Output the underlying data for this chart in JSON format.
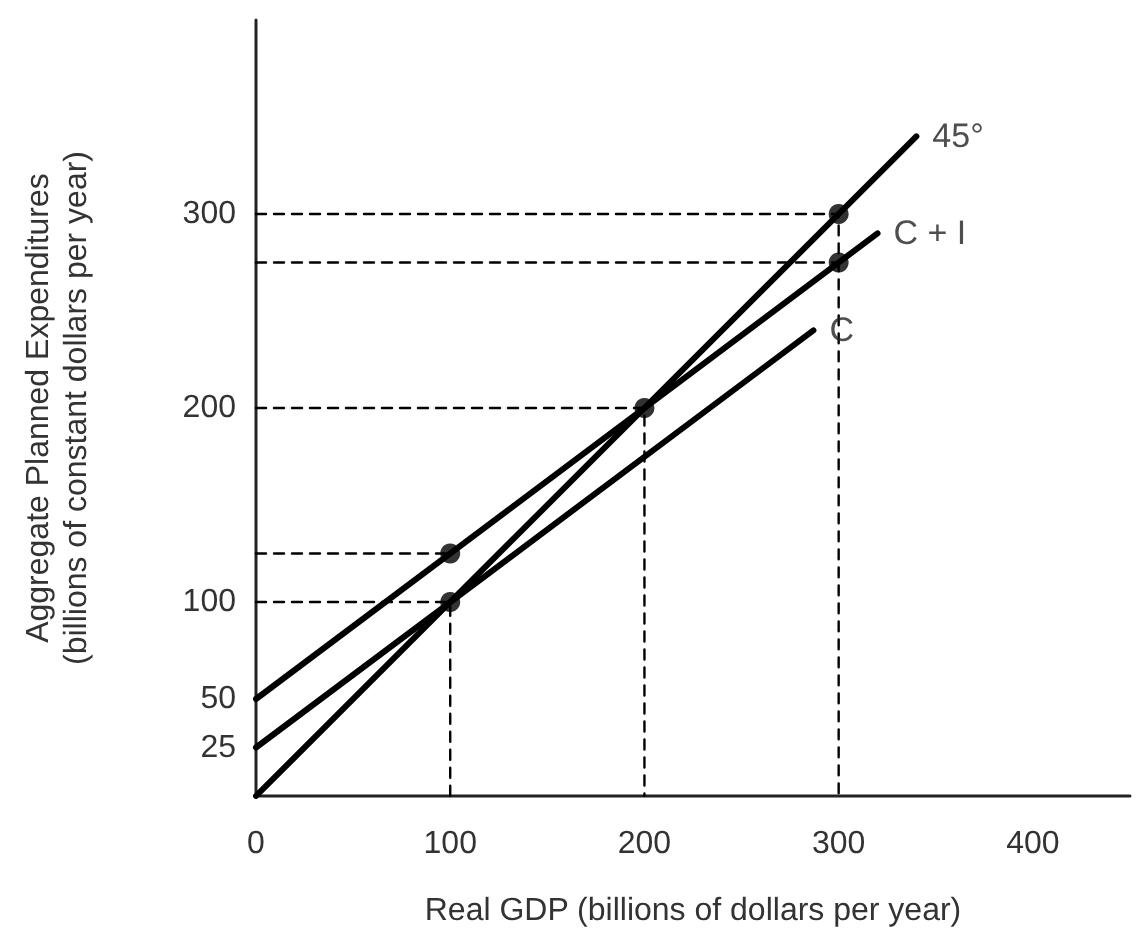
{
  "chart_data": {
    "type": "line",
    "xlabel": "Real GDP (billions of dollars per year)",
    "ylabel": "Aggregate Planned Expenditures\n(billions of constant dollars per year)",
    "xlim": [
      0,
      450
    ],
    "ylim": [
      0,
      400
    ],
    "xticks": [
      0,
      100,
      200,
      300,
      400
    ],
    "yticks": [
      25,
      50,
      100,
      200,
      300
    ],
    "series": [
      {
        "type": "line",
        "color": "#000000",
        "x": [
          0,
          100
        ],
        "values": [
          125,
          125
        ],
        "line_style": "dashed",
        "marker": "none"
      },
      {
        "type": "line",
        "color": "#000000",
        "x": [
          0,
          100,
          100
        ],
        "values": [
          100,
          100,
          0
        ],
        "line_style": "dashed",
        "marker": "none"
      },
      {
        "type": "line",
        "color": "#000000",
        "x": [
          0,
          200,
          200
        ],
        "values": [
          200,
          200,
          0
        ],
        "line_style": "dashed",
        "marker": "none"
      },
      {
        "type": "line",
        "color": "#000000",
        "x": [
          0,
          300,
          300
        ],
        "values": [
          300,
          300,
          0
        ],
        "line_style": "dashed",
        "marker": "none"
      },
      {
        "type": "line",
        "color": "#000000",
        "x": [
          0,
          300
        ],
        "values": [
          275,
          275
        ],
        "line_style": "dashed",
        "marker": "none"
      },
      {
        "type": "line",
        "color": "#000000",
        "x": [
          0,
          340
        ],
        "values": [
          0,
          340
        ],
        "line_style": "solid",
        "marker": "none"
      },
      {
        "type": "line",
        "color": "#000000",
        "x": [
          0,
          320
        ],
        "values": [
          50,
          290
        ],
        "line_style": "solid",
        "marker": "none"
      },
      {
        "type": "line",
        "color": "#000000",
        "x": [
          0,
          287
        ],
        "values": [
          25,
          240
        ],
        "line_style": "solid",
        "marker": "none"
      },
      {
        "type": "scatter",
        "color": "#000000",
        "x": [
          100,
          100,
          200,
          300,
          300
        ],
        "values": [
          100,
          125,
          200,
          300,
          275
        ],
        "marker": "circle"
      }
    ],
    "annotations": [
      {
        "text": "45°",
        "x": 340,
        "y": 340
      },
      {
        "text": "C + I",
        "x": 320,
        "y": 290
      },
      {
        "text": "C",
        "x": 287,
        "y": 240
      }
    ]
  }
}
